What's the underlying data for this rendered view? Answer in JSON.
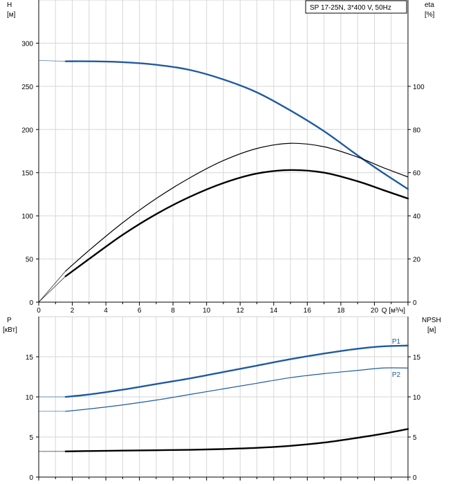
{
  "chart_data": [
    {
      "type": "line",
      "title": "SP 17-25N, 3*400 V, 50Hz",
      "left_axis": {
        "label": "H",
        "unit": "[м]",
        "ylim": [
          0,
          350
        ],
        "ticks": [
          0,
          50,
          100,
          150,
          200,
          250,
          300
        ]
      },
      "right_axis": {
        "label": "eta",
        "unit": "[%]",
        "ylim": [
          0,
          140
        ],
        "ticks": [
          0,
          20,
          40,
          60,
          80,
          100
        ]
      },
      "x_axis": {
        "label": "Q [м³/ч]",
        "xlim": [
          0,
          22
        ],
        "ticks": [
          0,
          2,
          4,
          6,
          8,
          10,
          12,
          14,
          16,
          18,
          20
        ]
      },
      "grid": true,
      "series": [
        {
          "role": "head",
          "axis": "left",
          "color": "#1f5aa0",
          "width": 2.4,
          "x": [
            1.6,
            3,
            5,
            7,
            9,
            11,
            13,
            15,
            17,
            19,
            20.5,
            22
          ],
          "y": [
            279,
            279,
            278,
            275,
            269,
            258,
            243,
            222,
            198,
            170,
            150,
            131
          ],
          "thin_lead_in": {
            "x": [
              0,
              1.6
            ],
            "y": [
              280,
              279
            ]
          }
        },
        {
          "role": "eta_pump",
          "axis": "right",
          "color": "#000000",
          "width": 1.2,
          "x": [
            1.6,
            3,
            5,
            7,
            9,
            11,
            13,
            15,
            17,
            19,
            20.5,
            22
          ],
          "y": [
            14.4,
            24,
            36.8,
            48,
            57.6,
            65.6,
            71.2,
            73.6,
            72,
            67.2,
            62.4,
            58
          ],
          "thin_lead_in": {
            "x": [
              0,
              1.6
            ],
            "y": [
              0,
              14.4
            ]
          }
        },
        {
          "role": "eta_total",
          "axis": "right",
          "color": "#000000",
          "width": 2.4,
          "x": [
            1.6,
            3,
            5,
            7,
            9,
            11,
            13,
            15,
            17,
            19,
            20.5,
            22
          ],
          "y": [
            12,
            20,
            31.2,
            40.8,
            48.8,
            55.2,
            59.6,
            61.2,
            60,
            56,
            52,
            48
          ],
          "thin_lead_in": {
            "x": [
              0,
              1.6
            ],
            "y": [
              0,
              12
            ]
          }
        }
      ]
    },
    {
      "type": "line",
      "left_axis": {
        "label": "P",
        "unit": "[кВт]",
        "ylim": [
          0,
          20
        ],
        "ticks": [
          0,
          5,
          10,
          15
        ]
      },
      "right_axis": {
        "label": "NPSH",
        "unit": "[м]",
        "ylim": [
          0,
          20
        ],
        "ticks": [
          0,
          5,
          10,
          15
        ]
      },
      "x_axis": {
        "xlim": [
          0,
          22
        ]
      },
      "grid": true,
      "series": [
        {
          "name": "P1",
          "axis": "left",
          "color": "#1f5aa0",
          "width": 2.4,
          "x": [
            1.6,
            3,
            5,
            7,
            9,
            11,
            13,
            15,
            17,
            19,
            20.5,
            22
          ],
          "y": [
            10,
            10.3,
            10.9,
            11.6,
            12.3,
            13.1,
            13.9,
            14.7,
            15.4,
            16,
            16.3,
            16.4
          ],
          "thin_lead_in": {
            "x": [
              0,
              1.6
            ],
            "y": [
              10,
              10
            ]
          }
        },
        {
          "name": "P2",
          "axis": "left",
          "color": "#1f5aa0",
          "width": 1.2,
          "x": [
            1.6,
            3,
            5,
            7,
            9,
            11,
            13,
            15,
            17,
            19,
            20.5,
            22
          ],
          "y": [
            8.2,
            8.5,
            9,
            9.6,
            10.3,
            11,
            11.7,
            12.4,
            12.9,
            13.3,
            13.6,
            13.6
          ],
          "thin_lead_in": {
            "x": [
              0,
              1.6
            ],
            "y": [
              8.2,
              8.2
            ]
          }
        },
        {
          "role": "npsh",
          "axis": "right",
          "color": "#000000",
          "width": 2.4,
          "x": [
            1.6,
            3,
            5,
            7,
            9,
            11,
            13,
            15,
            17,
            19,
            20.5,
            22
          ],
          "y": [
            3.2,
            3.25,
            3.3,
            3.35,
            3.4,
            3.5,
            3.65,
            3.9,
            4.3,
            4.9,
            5.4,
            6
          ],
          "thin_lead_in": {
            "x": [
              0,
              1.6
            ],
            "y": [
              3.2,
              3.2
            ]
          }
        }
      ]
    }
  ]
}
